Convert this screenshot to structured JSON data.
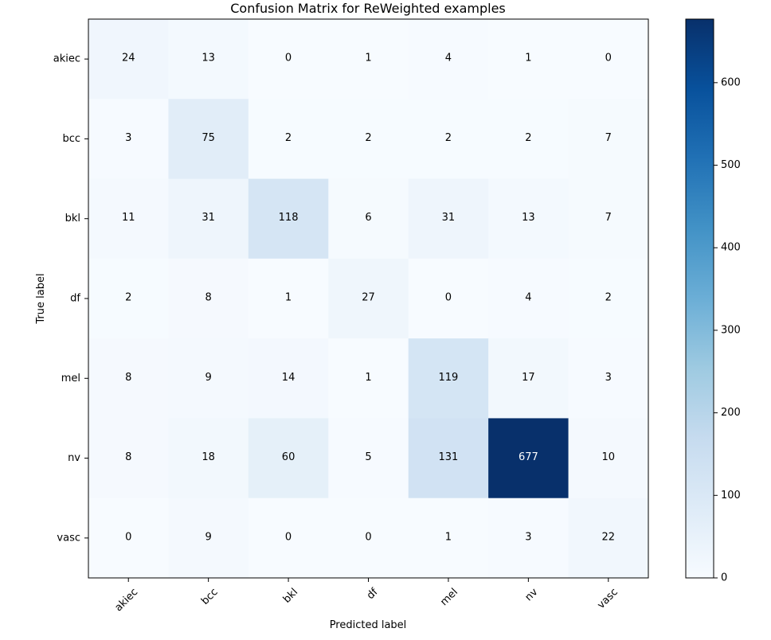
{
  "chart_data": {
    "type": "heatmap",
    "title": "Confusion Matrix for ReWeighted examples",
    "xlabel": "Predicted label",
    "ylabel": "True label",
    "x_categories": [
      "akiec",
      "bcc",
      "bkl",
      "df",
      "mel",
      "nv",
      "vasc"
    ],
    "y_categories": [
      "akiec",
      "bcc",
      "bkl",
      "df",
      "mel",
      "nv",
      "vasc"
    ],
    "values": [
      [
        24,
        13,
        0,
        1,
        4,
        1,
        0
      ],
      [
        3,
        75,
        2,
        2,
        2,
        2,
        7
      ],
      [
        11,
        31,
        118,
        6,
        31,
        13,
        7
      ],
      [
        2,
        8,
        1,
        27,
        0,
        4,
        2
      ],
      [
        8,
        9,
        14,
        1,
        119,
        17,
        3
      ],
      [
        8,
        18,
        60,
        5,
        131,
        677,
        10
      ],
      [
        0,
        9,
        0,
        0,
        1,
        3,
        22
      ]
    ],
    "colormap": "Blues",
    "colorbar": {
      "range": [
        0,
        677
      ],
      "ticks": [
        0,
        100,
        200,
        300,
        400,
        500,
        600
      ]
    },
    "colors": {
      "low": "#f7fbff",
      "high": "#08306b",
      "text_on_dark": "#ffffff",
      "text_on_light": "#000000"
    }
  }
}
